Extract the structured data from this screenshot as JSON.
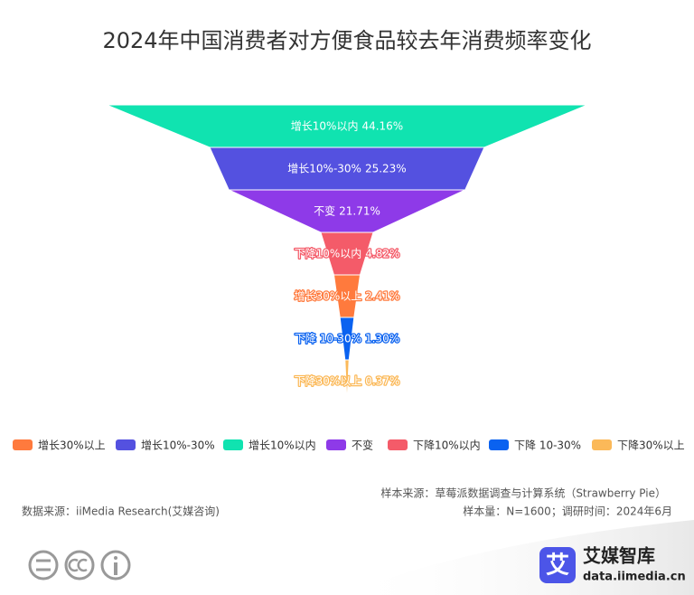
{
  "chart_data": {
    "type": "funnel",
    "title": "2024年中国消费者对方便食品较去年消费频率变化",
    "categories": [
      "增长10%以内",
      "增长10%-30%",
      "不变",
      "下降10%以内",
      "增长30%以上",
      "下降 10-30%",
      "下降30%以上"
    ],
    "values": [
      44.16,
      25.23,
      21.71,
      4.82,
      2.41,
      1.3,
      0.37
    ],
    "value_labels": [
      "44.16%",
      "25.23%",
      "21.71%",
      "4.82%",
      "2.41%",
      "1.30%",
      "0.37%"
    ],
    "colors": [
      "#10e3b0",
      "#5451e0",
      "#8e3ae8",
      "#f45b69",
      "#ff7a3d",
      "#0a62f0",
      "#fbb959"
    ],
    "legend": [
      "增长30%以上",
      "增长10%-30%",
      "增长10%以内",
      "不变",
      "下降10%以内",
      "下降 10-30%",
      "下降30%以上"
    ]
  },
  "footer": {
    "sample_source": "样本来源：草莓派数据调查与计算系统（Strawberry Pie）",
    "sample_size": "样本量：N=1600；调研时间：2024年6月",
    "data_source": "数据来源：iiMedia Research(艾媒咨询)",
    "logo_char": "艾",
    "brand": "艾媒智库",
    "site": "data.iimedia.cn"
  }
}
